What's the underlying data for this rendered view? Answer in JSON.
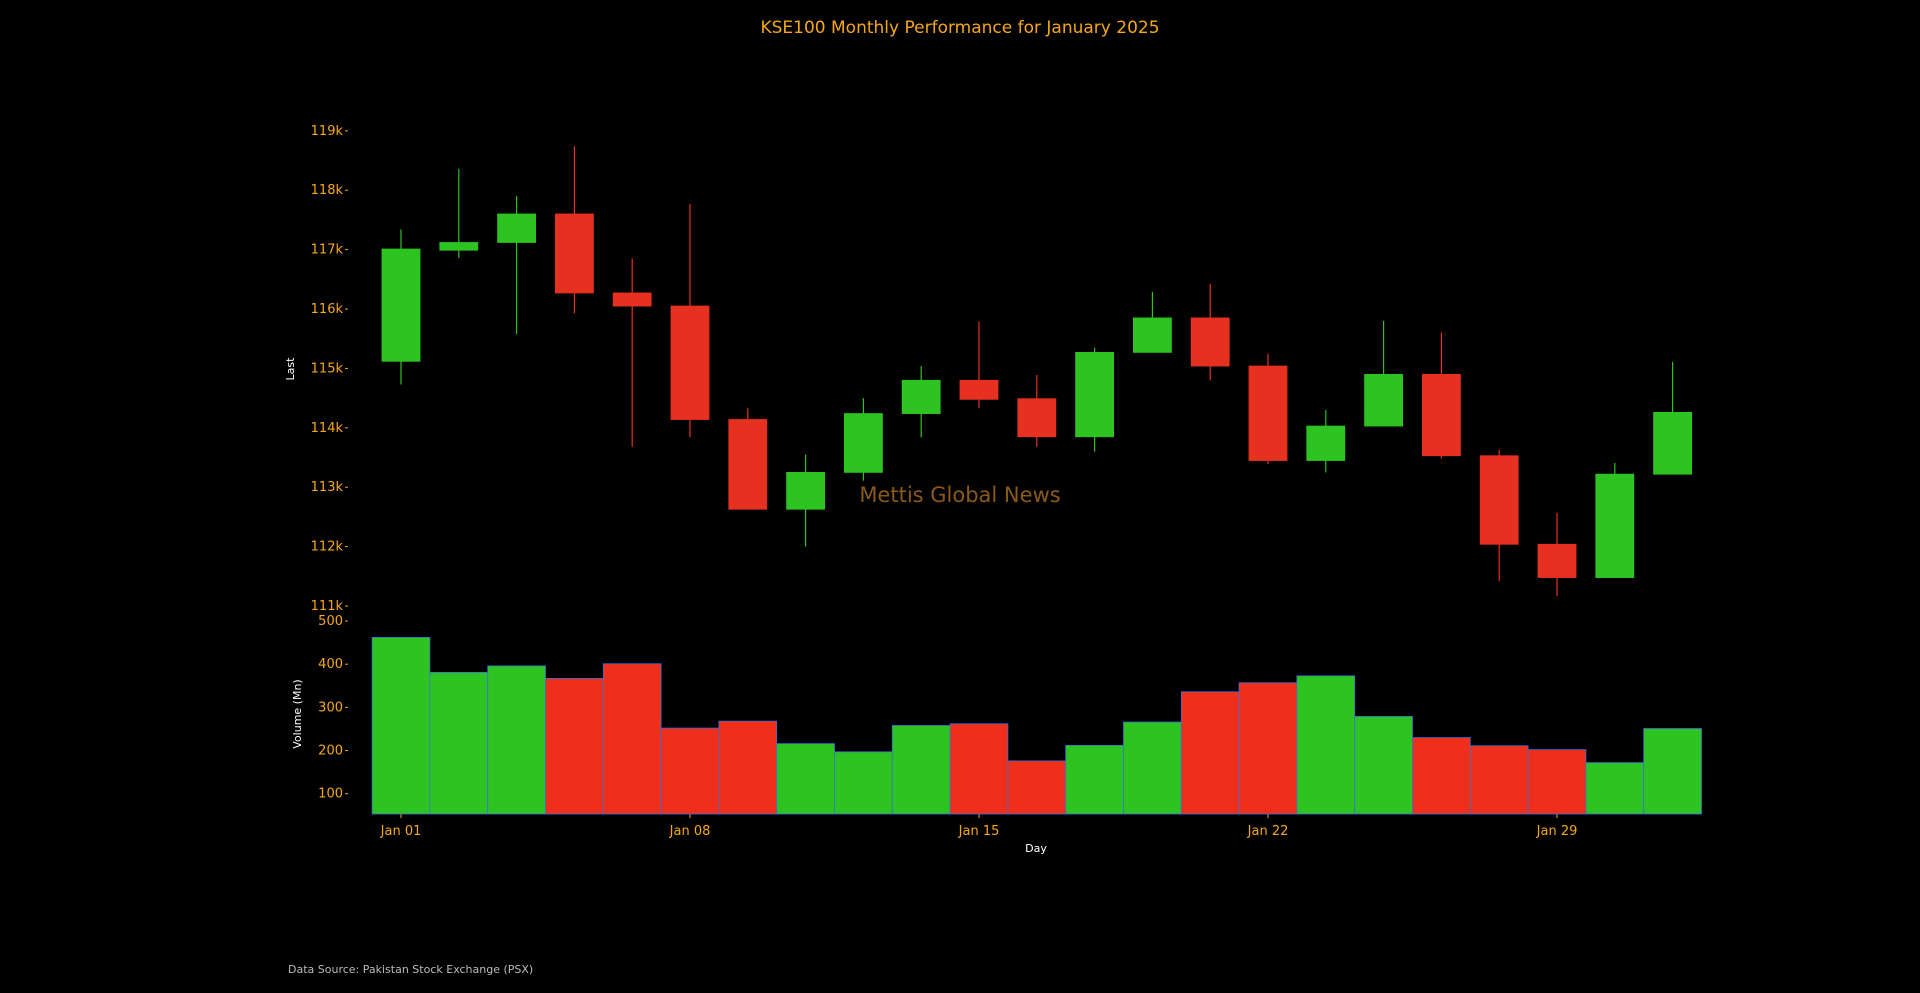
{
  "chart_data": {
    "type": "candlestick",
    "title": "KSE100 Monthly Performance for January 2025",
    "watermark": "Mettis Global News",
    "footer": "Data Source: Pakistan Stock Exchange (PSX)",
    "xlabel": "Day",
    "price_panel": {
      "ylabel": "Last",
      "ylim": [
        110900,
        119350
      ],
      "ticks": [
        111000,
        112000,
        113000,
        114000,
        115000,
        116000,
        117000,
        118000,
        119000
      ],
      "tick_labels": [
        "111k",
        "112k",
        "113k",
        "114k",
        "115k",
        "116k",
        "117k",
        "118k",
        "119k"
      ]
    },
    "volume_panel": {
      "ylabel": "Volume (Mn)",
      "ylim": [
        53,
        500
      ],
      "ticks": [
        100,
        200,
        300,
        400,
        500
      ],
      "tick_labels": [
        "100",
        "200",
        "300",
        "400",
        "500"
      ]
    },
    "x_tick_labels": [
      {
        "index": 0,
        "label": "Jan 01"
      },
      {
        "index": 5,
        "label": "Jan 08"
      },
      {
        "index": 10,
        "label": "Jan 15"
      },
      {
        "index": 15,
        "label": "Jan 22"
      },
      {
        "index": 20,
        "label": "Jan 29"
      }
    ],
    "candles": [
      {
        "open": 115120,
        "high": 117340,
        "low": 114730,
        "close": 117010,
        "volume": 462
      },
      {
        "open": 116990,
        "high": 118360,
        "low": 116860,
        "close": 117120,
        "volume": 381
      },
      {
        "open": 117120,
        "high": 117900,
        "low": 115580,
        "close": 117600,
        "volume": 396
      },
      {
        "open": 117600,
        "high": 118740,
        "low": 115930,
        "close": 116270,
        "volume": 367
      },
      {
        "open": 116270,
        "high": 116850,
        "low": 113680,
        "close": 116050,
        "volume": 401
      },
      {
        "open": 116050,
        "high": 117770,
        "low": 113840,
        "close": 114140,
        "volume": 252
      },
      {
        "open": 114140,
        "high": 114330,
        "low": 112630,
        "close": 112630,
        "volume": 268
      },
      {
        "open": 112630,
        "high": 113550,
        "low": 112000,
        "close": 113250,
        "volume": 216
      },
      {
        "open": 113250,
        "high": 114500,
        "low": 113110,
        "close": 114240,
        "volume": 197
      },
      {
        "open": 114240,
        "high": 115040,
        "low": 113840,
        "close": 114800,
        "volume": 258
      },
      {
        "open": 114800,
        "high": 115790,
        "low": 114330,
        "close": 114480,
        "volume": 262
      },
      {
        "open": 114490,
        "high": 114890,
        "low": 113680,
        "close": 113850,
        "volume": 176
      },
      {
        "open": 113850,
        "high": 115350,
        "low": 113600,
        "close": 115270,
        "volume": 212
      },
      {
        "open": 115270,
        "high": 116290,
        "low": 115270,
        "close": 115850,
        "volume": 266
      },
      {
        "open": 115850,
        "high": 116420,
        "low": 114800,
        "close": 115040,
        "volume": 336
      },
      {
        "open": 115040,
        "high": 115250,
        "low": 113390,
        "close": 113450,
        "volume": 357
      },
      {
        "open": 113450,
        "high": 114300,
        "low": 113250,
        "close": 114030,
        "volume": 373
      },
      {
        "open": 114030,
        "high": 115800,
        "low": 114030,
        "close": 114900,
        "volume": 279
      },
      {
        "open": 114900,
        "high": 115600,
        "low": 113480,
        "close": 113530,
        "volume": 230
      },
      {
        "open": 113530,
        "high": 113630,
        "low": 111420,
        "close": 112040,
        "volume": 211
      },
      {
        "open": 112040,
        "high": 112570,
        "low": 111170,
        "close": 111480,
        "volume": 202
      },
      {
        "open": 111480,
        "high": 113410,
        "low": 111480,
        "close": 113220,
        "volume": 172
      },
      {
        "open": 113220,
        "high": 115110,
        "low": 113220,
        "close": 114260,
        "volume": 251
      }
    ],
    "colors": {
      "up": "#2dc321",
      "down": "#e63121",
      "volume_up": "#2dc321",
      "volume_down": "#ee2f1c",
      "volume_edge": "#3a6fd8",
      "axis_text": "#f5a71c",
      "label_text": "#ffffff",
      "watermark": "#8a5a1c",
      "footer": "#bbbbbb",
      "background": "#000000"
    }
  }
}
